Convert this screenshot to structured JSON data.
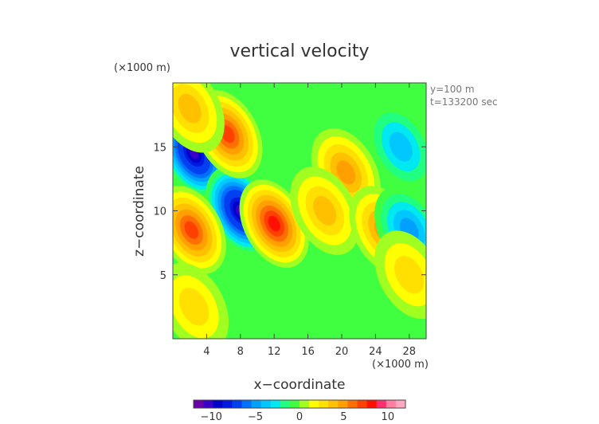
{
  "chart_data": {
    "type": "heatmap",
    "title": "vertical velocity",
    "xlabel": "x−coordinate",
    "ylabel": "z−coordinate",
    "x_unit": "(×1000 m)",
    "y_unit": "(×1000 m)",
    "xlim": [
      0,
      30
    ],
    "ylim": [
      0,
      20
    ],
    "x_ticks": [
      "4",
      "8",
      "12",
      "16",
      "20",
      "24",
      "28"
    ],
    "x_tick_values": [
      4,
      8,
      12,
      16,
      20,
      24,
      28
    ],
    "y_ticks": [
      "5",
      "10",
      "15"
    ],
    "y_tick_values": [
      5,
      10,
      15
    ],
    "annotations": [
      "y=100 m",
      "t=133200 sec"
    ],
    "colorbar": {
      "range": [
        -12,
        12
      ],
      "tick_labels": [
        "−10",
        "−5",
        "0",
        "5",
        "10"
      ],
      "tick_values": [
        -10,
        -5,
        0,
        5,
        10
      ],
      "colors": [
        "#6a00a8",
        "#3a00c8",
        "#0000cc",
        "#0018e0",
        "#0040f0",
        "#0070ff",
        "#00a0ff",
        "#00c8ff",
        "#00e8f0",
        "#20ff80",
        "#40ff40",
        "#a0ff20",
        "#ffff00",
        "#ffe000",
        "#ffc000",
        "#ffa000",
        "#ff7000",
        "#ff4000",
        "#ff1000",
        "#ff3070",
        "#ff80a0",
        "#ffa8c0"
      ]
    },
    "features": [
      {
        "x": 2.5,
        "z": 14.5,
        "value": -11
      },
      {
        "x": 8,
        "z": 10,
        "value": -11
      },
      {
        "x": 6.5,
        "z": 16,
        "value": 7
      },
      {
        "x": 2.2,
        "z": 8.5,
        "value": 7
      },
      {
        "x": 12,
        "z": 9,
        "value": 8
      },
      {
        "x": 20.5,
        "z": 13,
        "value": 5
      },
      {
        "x": 18,
        "z": 10,
        "value": 4
      },
      {
        "x": 2,
        "z": 18,
        "value": 4
      },
      {
        "x": 25,
        "z": 8.5,
        "value": 5
      },
      {
        "x": 28,
        "z": 8.5,
        "value": -5
      },
      {
        "x": 27,
        "z": 15,
        "value": -4
      },
      {
        "x": 2.5,
        "z": 2.5,
        "value": 3
      },
      {
        "x": 28,
        "z": 5,
        "value": 3
      }
    ]
  }
}
